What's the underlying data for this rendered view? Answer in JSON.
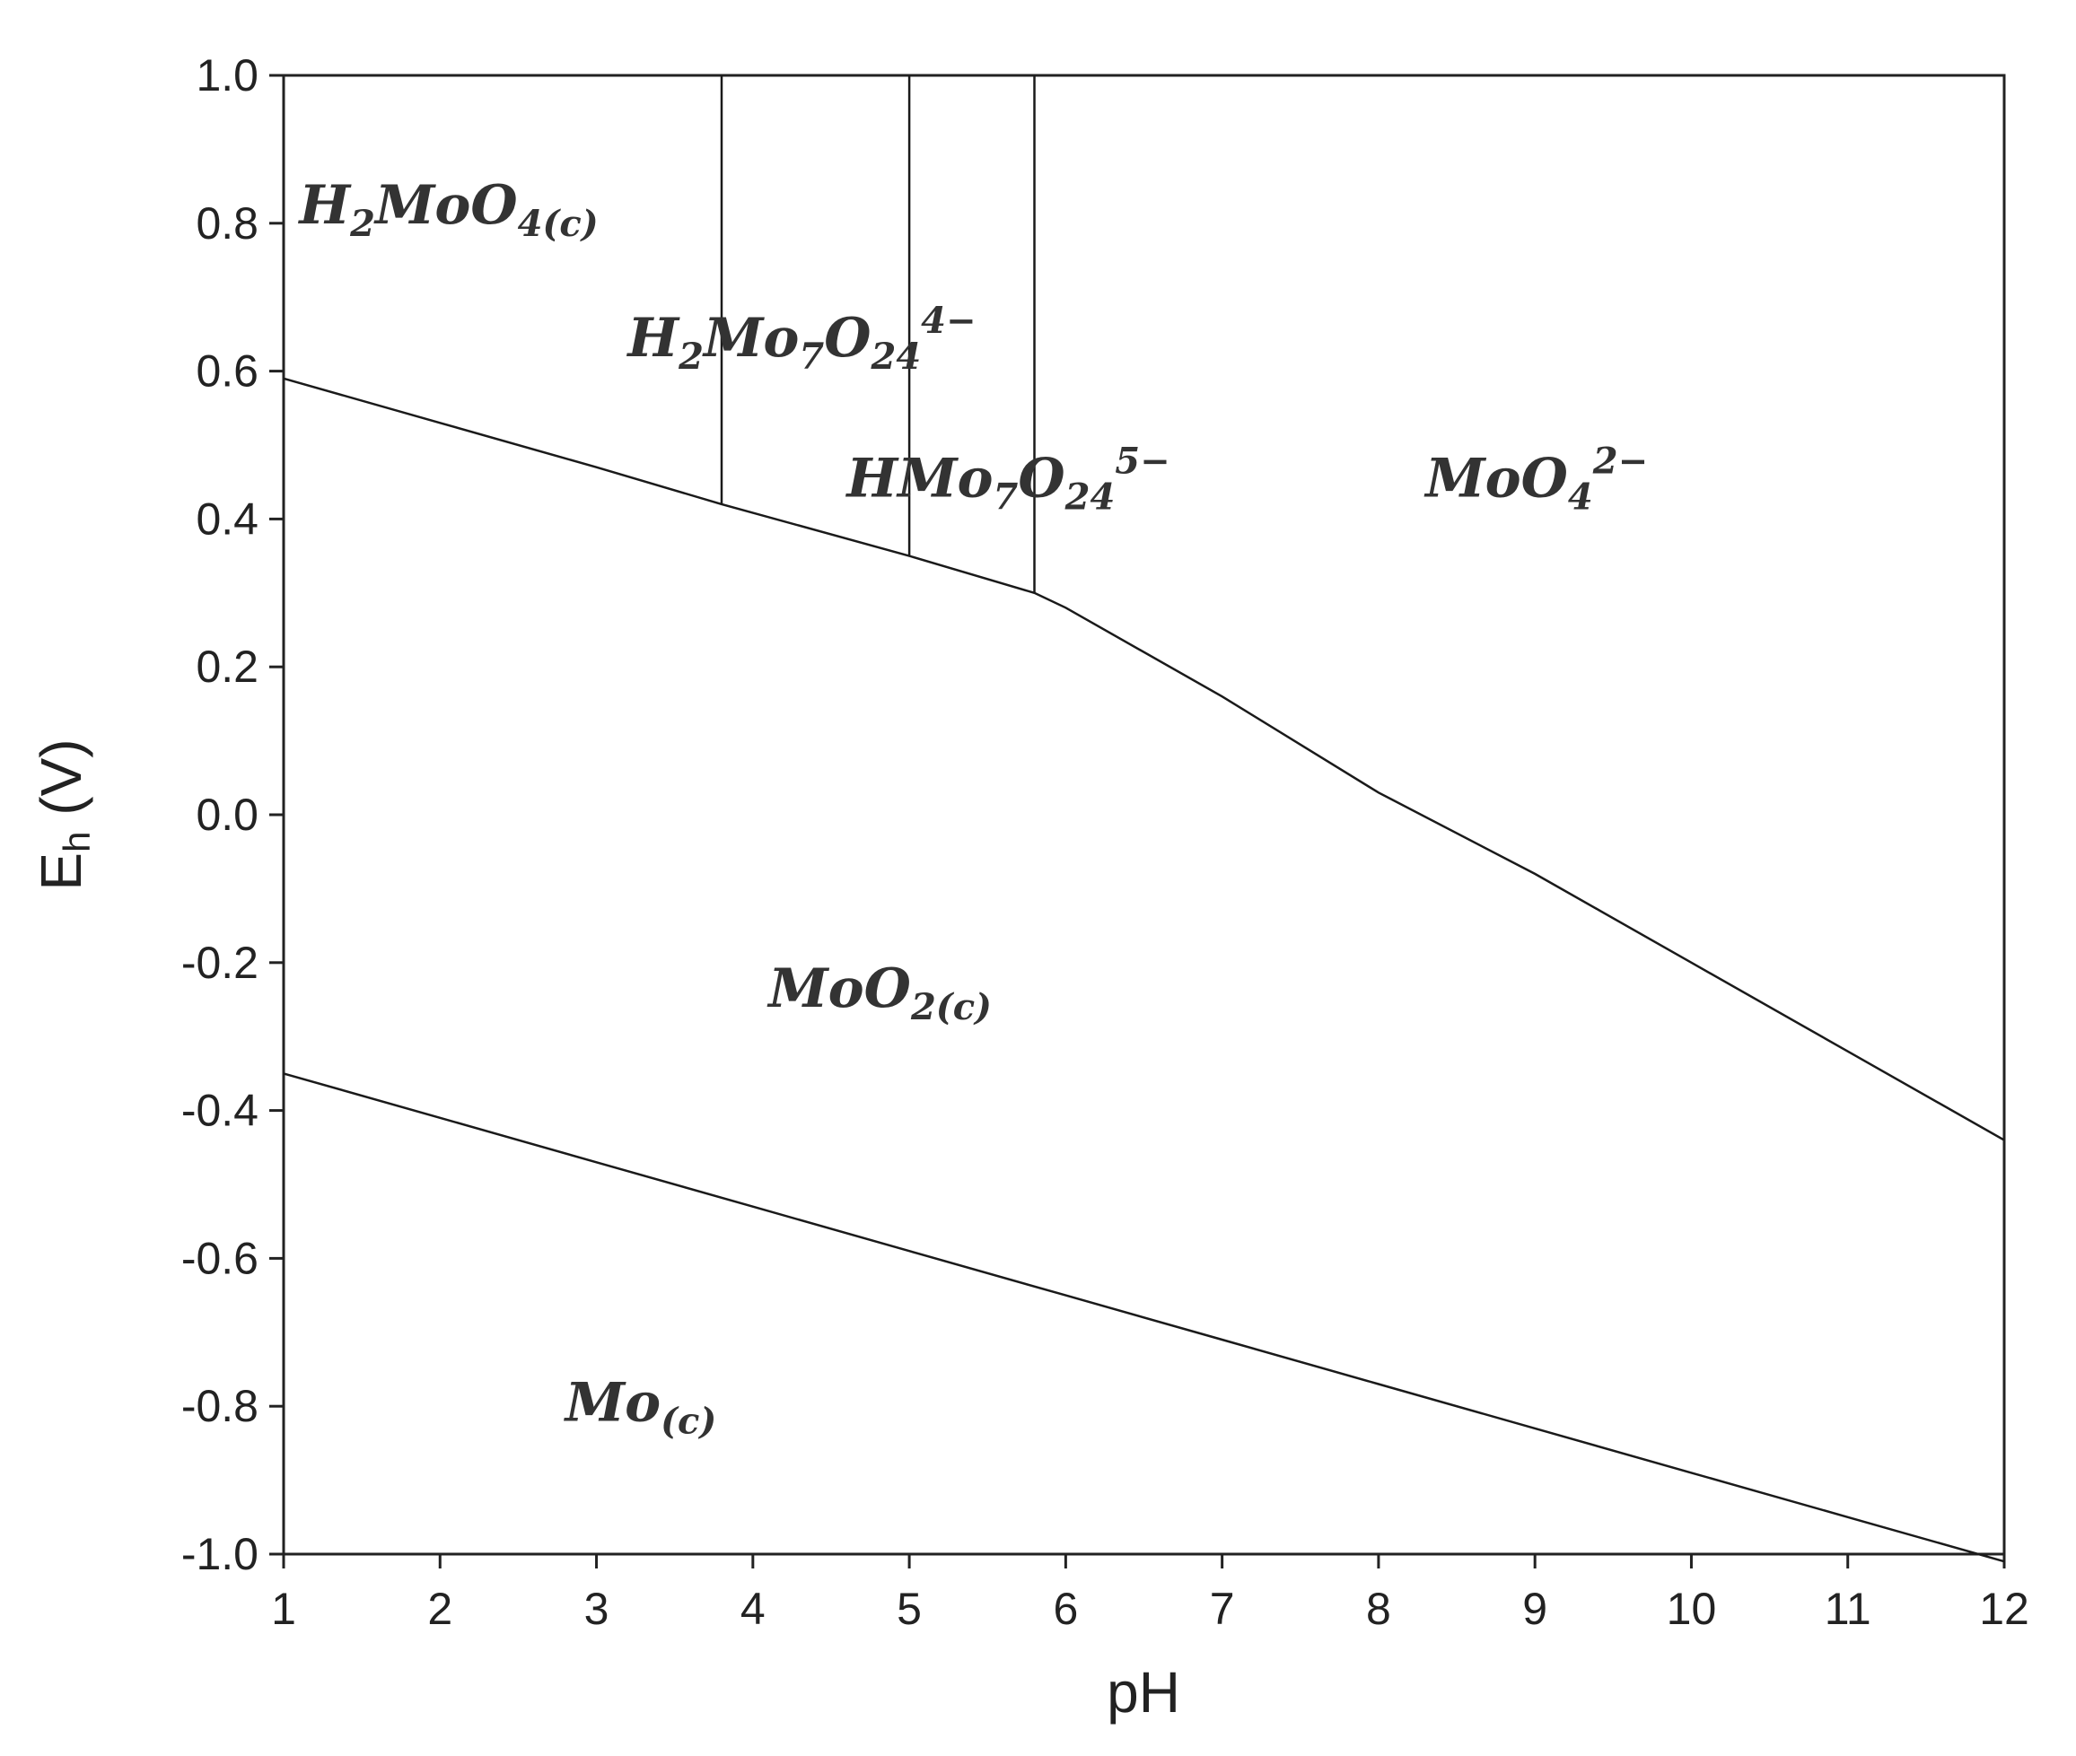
{
  "chart_data": {
    "type": "line",
    "xlabel": "pH",
    "ylabel": "E",
    "ylabel_sub": "h",
    "ylabel_unit": " (V)",
    "xlim": [
      1,
      12
    ],
    "ylim": [
      -1.0,
      1.0
    ],
    "x_ticks": [
      1,
      2,
      3,
      4,
      5,
      6,
      7,
      8,
      9,
      10,
      11,
      12
    ],
    "x_tick_labels": [
      "1",
      "2",
      "3",
      "4",
      "5",
      "6",
      "7",
      "8",
      "9",
      "10",
      "11",
      "12"
    ],
    "y_ticks": [
      1.0,
      0.8,
      0.6,
      0.4,
      0.2,
      0.0,
      -0.2,
      -0.4,
      -0.6,
      -0.8,
      -1.0
    ],
    "y_tick_labels": [
      "1.0",
      "0.8",
      "0.6",
      "0.4",
      "0.2",
      "0.0",
      "-0.2",
      "-0.4",
      "-0.6",
      "-0.8",
      "-1.0"
    ],
    "grid": false,
    "series": [
      {
        "x": [
          1,
          2,
          3,
          3.8,
          5,
          5.8,
          6,
          7,
          8,
          9,
          10,
          11,
          12
        ],
        "y": [
          0.59,
          0.53,
          0.47,
          0.42,
          0.35,
          0.3,
          0.28,
          0.16,
          0.03,
          -0.08,
          -0.2,
          -0.32,
          -0.44
        ]
      },
      {
        "x": [
          1,
          2,
          3,
          4,
          5,
          6,
          7,
          8,
          9,
          10,
          11,
          12
        ],
        "y": [
          -0.35,
          -0.41,
          -0.47,
          -0.53,
          -0.59,
          -0.65,
          -0.71,
          -0.77,
          -0.83,
          -0.89,
          -0.95,
          -1.01
        ]
      },
      {
        "x": [
          3.8,
          3.8
        ],
        "y": [
          0.42,
          1.0
        ]
      },
      {
        "x": [
          5,
          5
        ],
        "y": [
          0.35,
          1.0
        ]
      },
      {
        "x": [
          5.8,
          5.8
        ],
        "y": [
          0.3,
          1.0
        ]
      }
    ],
    "region_labels": [
      {
        "parts": [
          [
            "H",
            ""
          ],
          [
            "2",
            "sub"
          ],
          [
            "MoO",
            ""
          ],
          [
            "4(c)",
            "sub"
          ]
        ],
        "x": 1.1,
        "y": 0.8
      },
      {
        "parts": [
          [
            "H",
            ""
          ],
          [
            "2",
            "sub"
          ],
          [
            "Mo",
            ""
          ],
          [
            "7",
            "sub"
          ],
          [
            "O",
            ""
          ],
          [
            "24",
            "sub"
          ],
          [
            "4−",
            "sup"
          ]
        ],
        "x": 3.2,
        "y": 0.62
      },
      {
        "parts": [
          [
            "HMo",
            ""
          ],
          [
            "7",
            "sub"
          ],
          [
            "O",
            ""
          ],
          [
            "24",
            "sub"
          ],
          [
            "5−",
            "sup"
          ]
        ],
        "x": 4.6,
        "y": 0.43
      },
      {
        "parts": [
          [
            "MoO",
            ""
          ],
          [
            "4",
            "sub"
          ],
          [
            "2−",
            "sup"
          ]
        ],
        "x": 8.3,
        "y": 0.43
      },
      {
        "parts": [
          [
            "MoO",
            ""
          ],
          [
            "2(c)",
            "sub"
          ]
        ],
        "x": 4.1,
        "y": -0.26
      },
      {
        "parts": [
          [
            "Mo",
            ""
          ],
          [
            "(c)",
            "sub"
          ]
        ],
        "x": 2.8,
        "y": -0.82
      }
    ]
  }
}
